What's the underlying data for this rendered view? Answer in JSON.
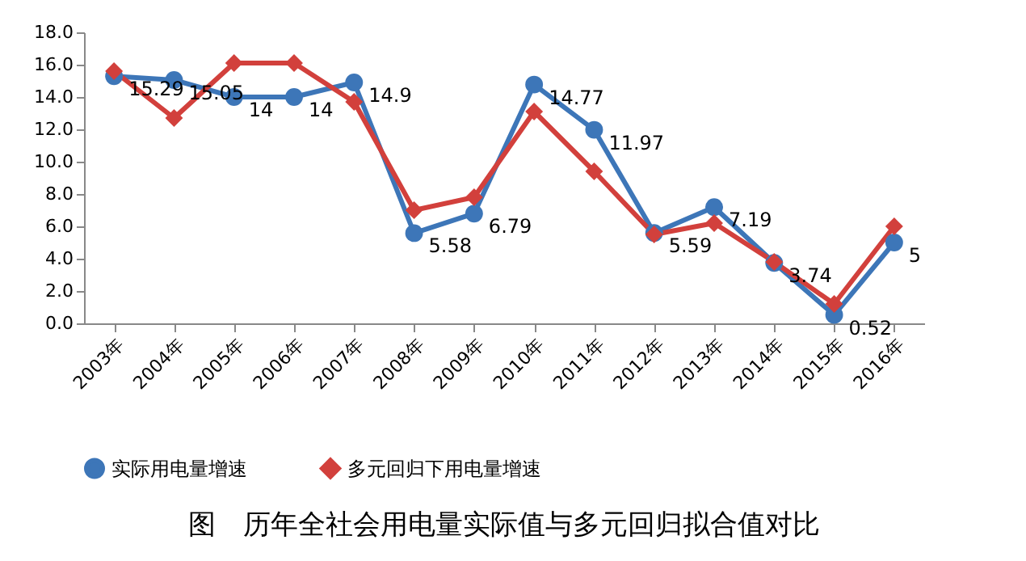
{
  "chart_data": {
    "type": "line",
    "title": "图　历年全社会用电量实际值与多元回归拟合值对比",
    "categories": [
      "2003年",
      "2004年",
      "2005年",
      "2006年",
      "2007年",
      "2008年",
      "2009年",
      "2010年",
      "2011年",
      "2012年",
      "2013年",
      "2014年",
      "2015年",
      "2016年"
    ],
    "series": [
      {
        "name": "实际用电量增速",
        "color": "#3d76b8",
        "marker": "circle",
        "values": [
          15.29,
          15.05,
          14,
          14,
          14.9,
          5.58,
          6.79,
          14.77,
          11.97,
          5.59,
          7.19,
          3.74,
          0.52,
          5
        ],
        "value_labels": [
          "15.29",
          "15.05",
          "14",
          "14",
          "14.9",
          "5.58",
          "6.79",
          "14.77",
          "11.97",
          "5.59",
          "7.19",
          "3.74",
          "0.52",
          "5"
        ]
      },
      {
        "name": "多元回归下用电量增速",
        "color": "#d2403c",
        "marker": "diamond",
        "values": [
          15.6,
          12.7,
          16.1,
          16.1,
          13.7,
          7.0,
          7.8,
          13.1,
          9.4,
          5.5,
          6.2,
          3.8,
          1.2,
          6.0
        ]
      }
    ],
    "ylim": [
      0,
      18
    ],
    "yticks": [
      {
        "value": 0,
        "label": "0.0"
      },
      {
        "value": 2,
        "label": "2.0"
      },
      {
        "value": 4,
        "label": "4.0"
      },
      {
        "value": 6,
        "label": "6.0"
      },
      {
        "value": 8,
        "label": "8.0"
      },
      {
        "value": 10,
        "label": "10.0"
      },
      {
        "value": 12,
        "label": "12.0"
      },
      {
        "value": 14,
        "label": "14.0"
      },
      {
        "value": 16,
        "label": "16.0"
      },
      {
        "value": 18,
        "label": "18.0"
      }
    ],
    "grid": false,
    "legend": "bottom",
    "line_style": "solid"
  }
}
